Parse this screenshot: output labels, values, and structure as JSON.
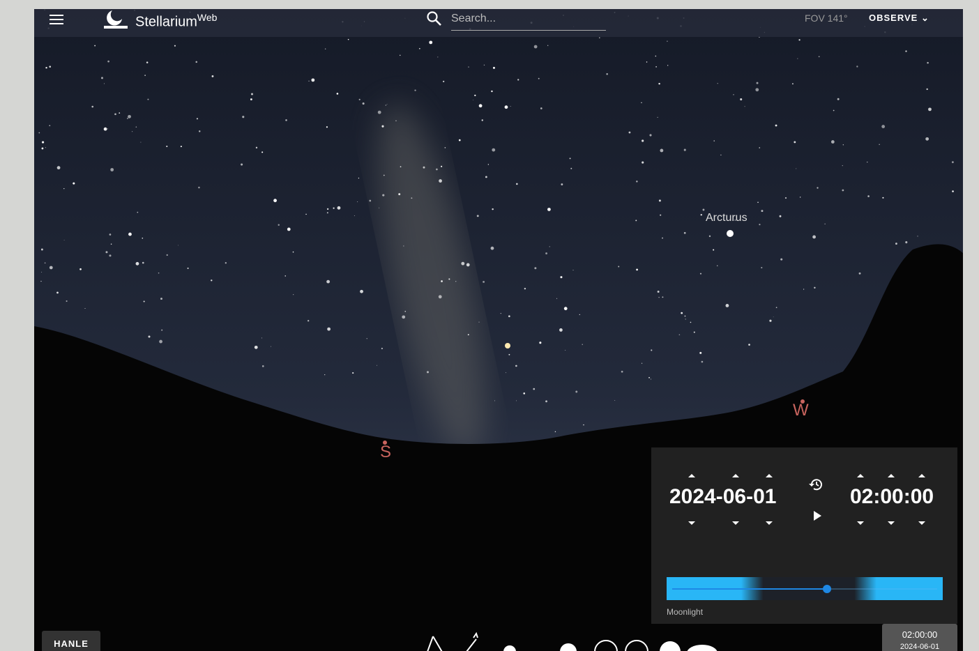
{
  "header": {
    "brand": "Stellarium",
    "brand_sup": "Web",
    "search_placeholder": "Search...",
    "fov": "FOV 141°",
    "observe": "OBSERVE"
  },
  "sky": {
    "star_label": "Arcturus",
    "south": "S",
    "west": "W"
  },
  "time_panel": {
    "date": "2024-06-01",
    "time": "02:00:00",
    "slider_label": "Moonlight"
  },
  "footer": {
    "location": "HANLE",
    "time": "02:00:00",
    "date": "2024-06-01"
  }
}
